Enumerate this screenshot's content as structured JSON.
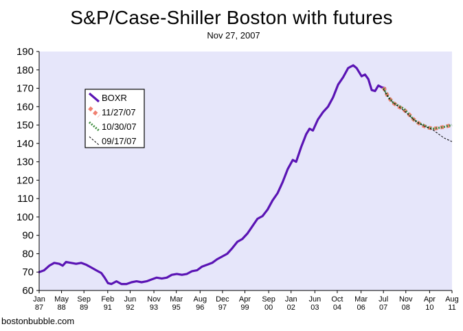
{
  "title": "S&P/Case-Shiller Boston with futures",
  "subtitle": "Nov 27, 2007",
  "source": "bostonbubble.com",
  "chart_data": {
    "type": "line",
    "title": "S&P/Case-Shiller Boston with futures",
    "subtitle": "Nov 27, 2007",
    "xlabel": "",
    "ylabel": "",
    "ylim": [
      60,
      190
    ],
    "yticks": [
      60,
      70,
      80,
      90,
      100,
      110,
      120,
      130,
      140,
      150,
      160,
      170,
      180,
      190
    ],
    "xlim": [
      1987.0,
      2011.583
    ],
    "xticks": [
      {
        "month": "Jan",
        "year": "87",
        "x": 1987.0
      },
      {
        "month": "May",
        "year": "88",
        "x": 1988.333
      },
      {
        "month": "Sep",
        "year": "89",
        "x": 1989.667
      },
      {
        "month": "Feb",
        "year": "91",
        "x": 1991.083
      },
      {
        "month": "Jun",
        "year": "92",
        "x": 1992.417
      },
      {
        "month": "Nov",
        "year": "93",
        "x": 1993.833
      },
      {
        "month": "Mar",
        "year": "95",
        "x": 1995.167
      },
      {
        "month": "Aug",
        "year": "96",
        "x": 1996.583
      },
      {
        "month": "Dec",
        "year": "97",
        "x": 1997.917
      },
      {
        "month": "Apr",
        "year": "99",
        "x": 1999.25
      },
      {
        "month": "Sep",
        "year": "00",
        "x": 2000.667
      },
      {
        "month": "Jan",
        "year": "02",
        "x": 2002.0
      },
      {
        "month": "Jun",
        "year": "03",
        "x": 2003.417
      },
      {
        "month": "Oct",
        "year": "04",
        "x": 2004.75
      },
      {
        "month": "Mar",
        "year": "06",
        "x": 2006.167
      },
      {
        "month": "Jul",
        "year": "07",
        "x": 2007.5
      },
      {
        "month": "Nov",
        "year": "08",
        "x": 2008.833
      },
      {
        "month": "Apr",
        "year": "10",
        "x": 2010.25
      },
      {
        "month": "Aug",
        "year": "11",
        "x": 2011.583
      }
    ],
    "grid": false,
    "legend": {
      "placement": "upper-left",
      "boxed": true
    },
    "series": [
      {
        "name": "BOXR",
        "color": "#5a14b4",
        "style": "solid",
        "points": [
          [
            1987.0,
            70
          ],
          [
            1987.3,
            71
          ],
          [
            1987.6,
            73.5
          ],
          [
            1987.9,
            75
          ],
          [
            1988.2,
            74.5
          ],
          [
            1988.4,
            73.5
          ],
          [
            1988.6,
            75.5
          ],
          [
            1988.9,
            75
          ],
          [
            1989.2,
            74.5
          ],
          [
            1989.5,
            75
          ],
          [
            1989.8,
            74
          ],
          [
            1990.1,
            72.5
          ],
          [
            1990.4,
            71
          ],
          [
            1990.7,
            69.5
          ],
          [
            1990.9,
            67
          ],
          [
            1991.1,
            64
          ],
          [
            1991.3,
            63.5
          ],
          [
            1991.6,
            65
          ],
          [
            1991.9,
            63.5
          ],
          [
            1992.2,
            63.5
          ],
          [
            1992.5,
            64.5
          ],
          [
            1992.8,
            65
          ],
          [
            1993.1,
            64.5
          ],
          [
            1993.4,
            65
          ],
          [
            1993.7,
            66
          ],
          [
            1994.0,
            67
          ],
          [
            1994.3,
            66.5
          ],
          [
            1994.6,
            67
          ],
          [
            1994.9,
            68.5
          ],
          [
            1995.2,
            69
          ],
          [
            1995.5,
            68.5
          ],
          [
            1995.8,
            69
          ],
          [
            1996.1,
            70.5
          ],
          [
            1996.4,
            71
          ],
          [
            1996.7,
            73
          ],
          [
            1997.0,
            74
          ],
          [
            1997.3,
            75
          ],
          [
            1997.6,
            77
          ],
          [
            1997.9,
            78.5
          ],
          [
            1998.2,
            80
          ],
          [
            1998.5,
            83
          ],
          [
            1998.8,
            86.5
          ],
          [
            1999.1,
            88
          ],
          [
            1999.4,
            91
          ],
          [
            1999.7,
            95
          ],
          [
            2000.0,
            99
          ],
          [
            2000.3,
            100.5
          ],
          [
            2000.6,
            104
          ],
          [
            2000.9,
            109
          ],
          [
            2001.2,
            113
          ],
          [
            2001.5,
            119
          ],
          [
            2001.8,
            126
          ],
          [
            2002.1,
            131
          ],
          [
            2002.3,
            130
          ],
          [
            2002.6,
            138
          ],
          [
            2002.9,
            145
          ],
          [
            2003.1,
            148
          ],
          [
            2003.3,
            147
          ],
          [
            2003.6,
            153
          ],
          [
            2003.9,
            157
          ],
          [
            2004.2,
            160
          ],
          [
            2004.5,
            165
          ],
          [
            2004.8,
            172
          ],
          [
            2005.1,
            176
          ],
          [
            2005.4,
            181
          ],
          [
            2005.7,
            182.5
          ],
          [
            2005.9,
            181
          ],
          [
            2006.2,
            176.5
          ],
          [
            2006.4,
            177.5
          ],
          [
            2006.6,
            175
          ],
          [
            2006.8,
            169
          ],
          [
            2007.0,
            168.5
          ],
          [
            2007.2,
            171.5
          ],
          [
            2007.4,
            170.5
          ],
          [
            2007.6,
            170
          ]
        ]
      },
      {
        "name": "11/27/07",
        "color": "#f08070",
        "style": "dotted-thick",
        "points": [
          [
            2007.5,
            170.5
          ],
          [
            2007.8,
            165
          ],
          [
            2008.1,
            162
          ],
          [
            2008.4,
            160
          ],
          [
            2008.7,
            158.5
          ],
          [
            2009.0,
            156
          ],
          [
            2009.3,
            153
          ],
          [
            2009.6,
            151
          ],
          [
            2009.9,
            149.5
          ],
          [
            2010.2,
            148.5
          ],
          [
            2010.5,
            148
          ],
          [
            2010.8,
            148.5
          ],
          [
            2011.1,
            149
          ],
          [
            2011.583,
            150
          ]
        ]
      },
      {
        "name": "10/30/07",
        "color": "#3c8c3c",
        "style": "dotted-thin",
        "points": [
          [
            2007.5,
            170
          ],
          [
            2007.8,
            165
          ],
          [
            2008.1,
            162
          ],
          [
            2008.4,
            160.5
          ],
          [
            2008.7,
            159
          ],
          [
            2009.0,
            156
          ],
          [
            2009.3,
            153
          ],
          [
            2009.6,
            151
          ],
          [
            2009.9,
            150
          ],
          [
            2010.2,
            148.5
          ],
          [
            2010.5,
            148
          ],
          [
            2010.8,
            148.5
          ],
          [
            2011.1,
            149
          ],
          [
            2011.583,
            150
          ]
        ]
      },
      {
        "name": "09/17/07",
        "color": "#000000",
        "style": "dashed",
        "points": [
          [
            2007.5,
            169.5
          ],
          [
            2007.8,
            165
          ],
          [
            2008.1,
            162
          ],
          [
            2008.4,
            160
          ],
          [
            2008.7,
            158
          ],
          [
            2009.0,
            155.5
          ],
          [
            2009.3,
            153
          ],
          [
            2009.6,
            151
          ],
          [
            2009.9,
            149.5
          ],
          [
            2010.2,
            148.5
          ],
          [
            2010.5,
            147
          ],
          [
            2010.8,
            145
          ],
          [
            2011.1,
            143
          ],
          [
            2011.583,
            141
          ]
        ]
      }
    ]
  }
}
